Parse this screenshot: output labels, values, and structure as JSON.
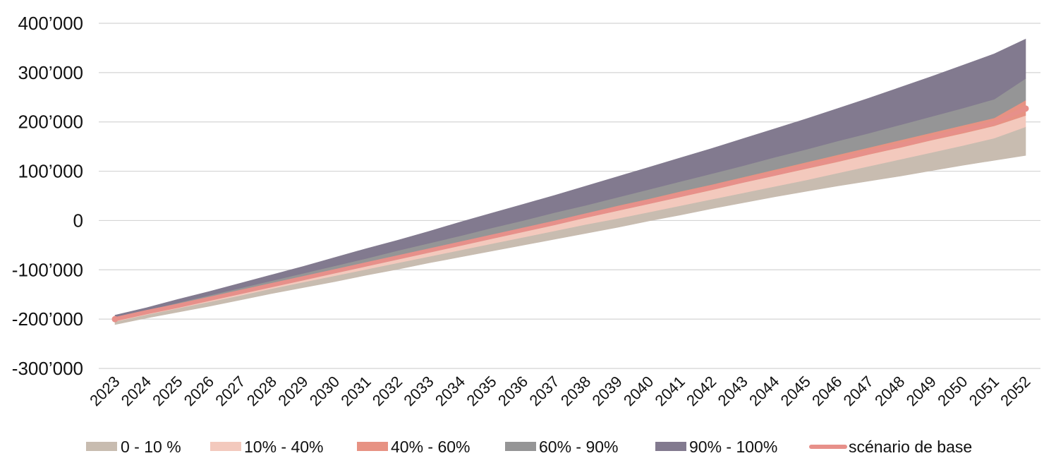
{
  "chart_data": {
    "type": "area",
    "title": "",
    "xlabel": "",
    "ylabel": "",
    "x": [
      2023,
      2024,
      2025,
      2026,
      2027,
      2028,
      2029,
      2030,
      2031,
      2032,
      2033,
      2034,
      2035,
      2036,
      2037,
      2038,
      2039,
      2040,
      2041,
      2042,
      2043,
      2044,
      2045,
      2046,
      2047,
      2048,
      2049,
      2050,
      2051,
      2052
    ],
    "ylim": [
      -300000,
      400000
    ],
    "yticks": [
      -300000,
      -200000,
      -100000,
      0,
      100000,
      200000,
      300000,
      400000
    ],
    "ytick_labels": [
      "-300’000",
      "-200’000",
      "-100’000",
      "0",
      "100’000",
      "200’000",
      "300’000",
      "400’000"
    ],
    "grid": true,
    "legend_position": "bottom",
    "series": [
      {
        "name": "0 - 10 %",
        "kind": "band",
        "color": "#c8bcb0",
        "lower": [
          -211000,
          -198000,
          -186000,
          -174000,
          -161000,
          -148000,
          -136000,
          -124000,
          -111000,
          -99000,
          -86000,
          -74000,
          -62000,
          -50000,
          -38000,
          -26000,
          -14000,
          -1000,
          11000,
          24000,
          36000,
          48000,
          59000,
          70000,
          80000,
          90000,
          101000,
          112000,
          122000,
          132000
        ],
        "upper": [
          -205000,
          -191000,
          -178000,
          -165000,
          -152000,
          -138000,
          -125000,
          -112000,
          -99000,
          -86000,
          -73000,
          -60000,
          -47000,
          -34000,
          -21000,
          -8000,
          4000,
          17000,
          30000,
          43000,
          56000,
          69000,
          82000,
          96000,
          110000,
          124000,
          138000,
          152000,
          167000,
          190000
        ]
      },
      {
        "name": "10% - 40%",
        "kind": "band",
        "color": "#f3c9bd",
        "lower": [
          -205000,
          -191000,
          -178000,
          -165000,
          -152000,
          -138000,
          -125000,
          -112000,
          -99000,
          -86000,
          -73000,
          -60000,
          -47000,
          -34000,
          -21000,
          -8000,
          4000,
          17000,
          30000,
          43000,
          56000,
          69000,
          82000,
          96000,
          110000,
          124000,
          138000,
          152000,
          167000,
          190000
        ],
        "upper": [
          -202000,
          -188000,
          -175000,
          -161000,
          -147000,
          -133000,
          -119000,
          -105000,
          -91000,
          -77000,
          -63000,
          -49000,
          -36000,
          -22000,
          -8000,
          6000,
          20000,
          34000,
          48000,
          62000,
          77000,
          91000,
          105000,
          119000,
          134000,
          148000,
          163000,
          177000,
          192000,
          213000
        ]
      },
      {
        "name": "40% - 60%",
        "kind": "band",
        "color": "#e79283",
        "lower": [
          -202000,
          -188000,
          -175000,
          -161000,
          -147000,
          -133000,
          -119000,
          -105000,
          -91000,
          -77000,
          -63000,
          -49000,
          -36000,
          -22000,
          -8000,
          6000,
          20000,
          34000,
          48000,
          62000,
          77000,
          91000,
          105000,
          119000,
          134000,
          148000,
          163000,
          177000,
          192000,
          213000
        ],
        "upper": [
          -199000,
          -185000,
          -171000,
          -157000,
          -143000,
          -129000,
          -114000,
          -100000,
          -86000,
          -71000,
          -57000,
          -43000,
          -29000,
          -14000,
          0,
          15000,
          30000,
          44000,
          59000,
          73000,
          88000,
          103000,
          118000,
          133000,
          148000,
          163000,
          178000,
          193000,
          208000,
          244000
        ]
      },
      {
        "name": "60% - 90%",
        "kind": "band",
        "color": "#959596",
        "lower": [
          -199000,
          -185000,
          -171000,
          -157000,
          -143000,
          -129000,
          -114000,
          -100000,
          -86000,
          -71000,
          -57000,
          -43000,
          -29000,
          -14000,
          0,
          15000,
          30000,
          44000,
          59000,
          73000,
          88000,
          103000,
          118000,
          133000,
          148000,
          163000,
          178000,
          193000,
          208000,
          244000
        ],
        "upper": [
          -196000,
          -182000,
          -167000,
          -152000,
          -137000,
          -122000,
          -107000,
          -92000,
          -77000,
          -61000,
          -46000,
          -31000,
          -15000,
          0,
          16000,
          31000,
          47000,
          63000,
          79000,
          95000,
          111000,
          128000,
          144000,
          161000,
          177000,
          194000,
          211000,
          228000,
          246000,
          288000
        ]
      },
      {
        "name": "90% - 100%",
        "kind": "band",
        "color": "#827a8f",
        "lower": [
          -196000,
          -182000,
          -167000,
          -152000,
          -137000,
          -122000,
          -107000,
          -92000,
          -77000,
          -61000,
          -46000,
          -31000,
          -15000,
          0,
          16000,
          31000,
          47000,
          63000,
          79000,
          95000,
          111000,
          128000,
          144000,
          161000,
          177000,
          194000,
          211000,
          228000,
          246000,
          288000
        ],
        "upper": [
          -192000,
          -177000,
          -160000,
          -144000,
          -127000,
          -110000,
          -93000,
          -75000,
          -57000,
          -40000,
          -22000,
          -3000,
          15000,
          33000,
          51000,
          70000,
          89000,
          108000,
          127000,
          146000,
          166000,
          186000,
          206000,
          227000,
          248000,
          270000,
          292000,
          315000,
          338000,
          368000
        ]
      },
      {
        "name": "scénario de base",
        "kind": "line",
        "color": "#e7908a",
        "values": [
          -200000,
          -186000,
          -173000,
          -159000,
          -145000,
          -131000,
          -117000,
          -103000,
          -89000,
          -75000,
          -61000,
          -47000,
          -33000,
          -19000,
          -5000,
          10000,
          24000,
          38000,
          52000,
          67000,
          81000,
          95000,
          110000,
          124000,
          139000,
          153000,
          168000,
          183000,
          198000,
          227000
        ]
      }
    ]
  }
}
